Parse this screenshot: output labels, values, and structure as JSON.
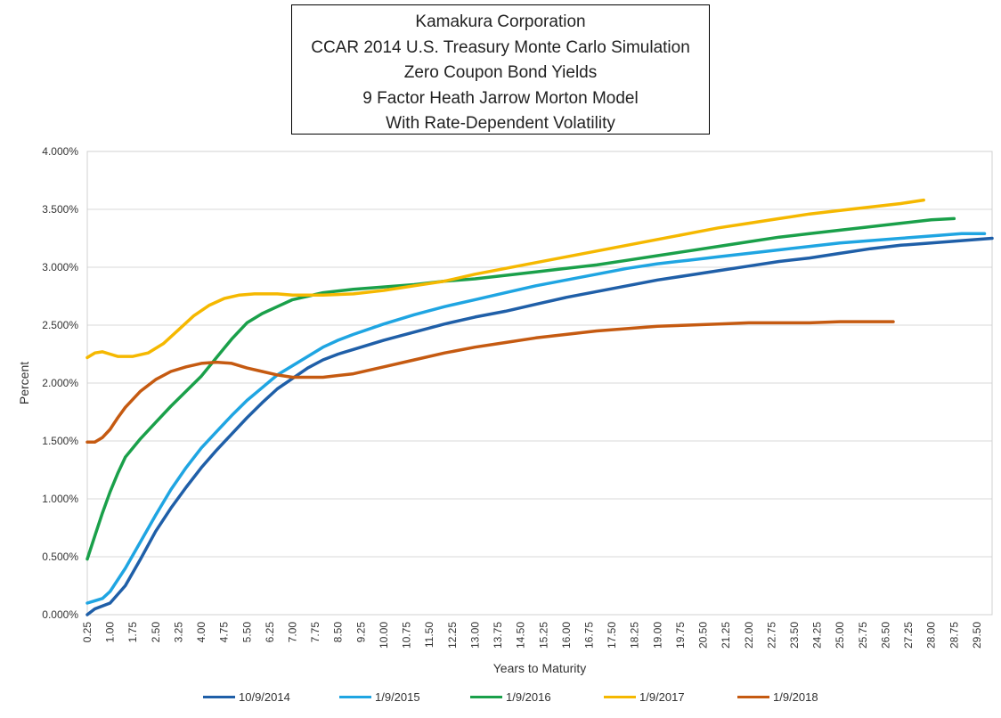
{
  "title_lines": [
    "Kamakura Corporation",
    "CCAR 2014 U.S. Treasury Monte Carlo Simulation",
    "Zero Coupon Bond Yields",
    "9 Factor Heath Jarrow Morton Model",
    "With Rate-Dependent Volatility"
  ],
  "chart_data": {
    "type": "line",
    "title": "Kamakura Corporation / CCAR 2014 U.S. Treasury Monte Carlo Simulation / Zero Coupon Bond Yields / 9 Factor Heath Jarrow Morton Model / With Rate-Dependent Volatility",
    "xlabel": "Years to Maturity",
    "ylabel": "Percent",
    "xlim": [
      0.25,
      30.0
    ],
    "ylim": [
      0,
      4
    ],
    "x_tick_labels": [
      "0.25",
      "1.00",
      "1.75",
      "2.50",
      "3.25",
      "4.00",
      "4.75",
      "5.50",
      "6.25",
      "7.00",
      "7.75",
      "8.50",
      "9.25",
      "10.00",
      "10.75",
      "11.50",
      "12.25",
      "13.00",
      "13.75",
      "14.50",
      "15.25",
      "16.00",
      "16.75",
      "17.50",
      "18.25",
      "19.00",
      "19.75",
      "20.50",
      "21.25",
      "22.00",
      "22.75",
      "23.50",
      "24.25",
      "25.00",
      "25.75",
      "26.50",
      "27.25",
      "28.00",
      "28.75",
      "29.50"
    ],
    "y_tick_labels": [
      "0.000%",
      "0.500%",
      "1.000%",
      "1.500%",
      "2.000%",
      "2.500%",
      "3.000%",
      "3.500%",
      "4.000%"
    ],
    "y_ticks": [
      0,
      0.5,
      1.0,
      1.5,
      2.0,
      2.5,
      3.0,
      3.5,
      4.0
    ],
    "grid": "horizontal",
    "legend_position": "bottom",
    "series": [
      {
        "name": "10/9/2014",
        "color": "#1f5fa8",
        "points": [
          [
            0.25,
            0.0
          ],
          [
            0.5,
            0.05
          ],
          [
            1.0,
            0.1
          ],
          [
            1.5,
            0.25
          ],
          [
            2.0,
            0.48
          ],
          [
            2.5,
            0.72
          ],
          [
            3.0,
            0.92
          ],
          [
            3.5,
            1.1
          ],
          [
            4.0,
            1.27
          ],
          [
            4.5,
            1.42
          ],
          [
            5.0,
            1.56
          ],
          [
            5.5,
            1.7
          ],
          [
            6.0,
            1.83
          ],
          [
            6.5,
            1.95
          ],
          [
            7.0,
            2.04
          ],
          [
            7.5,
            2.13
          ],
          [
            8.0,
            2.2
          ],
          [
            8.5,
            2.25
          ],
          [
            9.0,
            2.29
          ],
          [
            10.0,
            2.37
          ],
          [
            11.0,
            2.44
          ],
          [
            12.0,
            2.51
          ],
          [
            13.0,
            2.57
          ],
          [
            14.0,
            2.62
          ],
          [
            15.0,
            2.68
          ],
          [
            16.0,
            2.74
          ],
          [
            17.0,
            2.79
          ],
          [
            18.0,
            2.84
          ],
          [
            19.0,
            2.89
          ],
          [
            20.0,
            2.93
          ],
          [
            21.0,
            2.97
          ],
          [
            22.0,
            3.01
          ],
          [
            23.0,
            3.05
          ],
          [
            24.0,
            3.08
          ],
          [
            25.0,
            3.12
          ],
          [
            26.0,
            3.16
          ],
          [
            27.0,
            3.19
          ],
          [
            28.0,
            3.21
          ],
          [
            29.0,
            3.23
          ],
          [
            30.0,
            3.25
          ]
        ]
      },
      {
        "name": "1/9/2015",
        "color": "#1fa5e2",
        "points": [
          [
            0.25,
            0.1
          ],
          [
            0.5,
            0.12
          ],
          [
            0.75,
            0.14
          ],
          [
            1.0,
            0.2
          ],
          [
            1.5,
            0.4
          ],
          [
            2.0,
            0.63
          ],
          [
            2.5,
            0.86
          ],
          [
            3.0,
            1.08
          ],
          [
            3.5,
            1.27
          ],
          [
            4.0,
            1.44
          ],
          [
            4.5,
            1.58
          ],
          [
            5.0,
            1.72
          ],
          [
            5.5,
            1.85
          ],
          [
            6.0,
            1.96
          ],
          [
            6.5,
            2.07
          ],
          [
            7.0,
            2.15
          ],
          [
            7.5,
            2.23
          ],
          [
            8.0,
            2.31
          ],
          [
            8.5,
            2.37
          ],
          [
            9.0,
            2.42
          ],
          [
            10.0,
            2.51
          ],
          [
            11.0,
            2.59
          ],
          [
            12.0,
            2.66
          ],
          [
            13.0,
            2.72
          ],
          [
            14.0,
            2.78
          ],
          [
            15.0,
            2.84
          ],
          [
            16.0,
            2.89
          ],
          [
            17.0,
            2.94
          ],
          [
            18.0,
            2.99
          ],
          [
            19.0,
            3.03
          ],
          [
            20.0,
            3.06
          ],
          [
            21.0,
            3.09
          ],
          [
            22.0,
            3.12
          ],
          [
            23.0,
            3.15
          ],
          [
            24.0,
            3.18
          ],
          [
            25.0,
            3.21
          ],
          [
            26.0,
            3.23
          ],
          [
            27.0,
            3.25
          ],
          [
            28.0,
            3.27
          ],
          [
            29.0,
            3.29
          ],
          [
            29.75,
            3.29
          ]
        ]
      },
      {
        "name": "1/9/2016",
        "color": "#1aa04a",
        "points": [
          [
            0.25,
            0.48
          ],
          [
            0.5,
            0.68
          ],
          [
            0.75,
            0.88
          ],
          [
            1.0,
            1.06
          ],
          [
            1.25,
            1.22
          ],
          [
            1.5,
            1.36
          ],
          [
            2.0,
            1.52
          ],
          [
            2.5,
            1.66
          ],
          [
            3.0,
            1.8
          ],
          [
            3.5,
            1.93
          ],
          [
            4.0,
            2.06
          ],
          [
            4.5,
            2.22
          ],
          [
            5.0,
            2.38
          ],
          [
            5.5,
            2.52
          ],
          [
            6.0,
            2.6
          ],
          [
            6.5,
            2.66
          ],
          [
            7.0,
            2.72
          ],
          [
            7.5,
            2.75
          ],
          [
            8.0,
            2.78
          ],
          [
            9.0,
            2.81
          ],
          [
            10.0,
            2.83
          ],
          [
            11.0,
            2.85
          ],
          [
            12.0,
            2.88
          ],
          [
            13.0,
            2.9
          ],
          [
            14.0,
            2.93
          ],
          [
            15.0,
            2.96
          ],
          [
            16.0,
            2.99
          ],
          [
            17.0,
            3.02
          ],
          [
            18.0,
            3.06
          ],
          [
            19.0,
            3.1
          ],
          [
            20.0,
            3.14
          ],
          [
            21.0,
            3.18
          ],
          [
            22.0,
            3.22
          ],
          [
            23.0,
            3.26
          ],
          [
            24.0,
            3.29
          ],
          [
            25.0,
            3.32
          ],
          [
            26.0,
            3.35
          ],
          [
            27.0,
            3.38
          ],
          [
            28.0,
            3.41
          ],
          [
            28.75,
            3.42
          ]
        ]
      },
      {
        "name": "1/9/2017",
        "color": "#f5b800",
        "points": [
          [
            0.25,
            2.22
          ],
          [
            0.5,
            2.26
          ],
          [
            0.75,
            2.27
          ],
          [
            1.0,
            2.25
          ],
          [
            1.25,
            2.23
          ],
          [
            1.75,
            2.23
          ],
          [
            2.25,
            2.26
          ],
          [
            2.75,
            2.34
          ],
          [
            3.25,
            2.46
          ],
          [
            3.75,
            2.58
          ],
          [
            4.25,
            2.67
          ],
          [
            4.75,
            2.73
          ],
          [
            5.25,
            2.76
          ],
          [
            5.75,
            2.77
          ],
          [
            6.5,
            2.77
          ],
          [
            7.0,
            2.76
          ],
          [
            7.5,
            2.76
          ],
          [
            8.0,
            2.76
          ],
          [
            9.0,
            2.77
          ],
          [
            10.0,
            2.8
          ],
          [
            11.0,
            2.84
          ],
          [
            12.0,
            2.88
          ],
          [
            13.0,
            2.94
          ],
          [
            14.0,
            2.99
          ],
          [
            15.0,
            3.04
          ],
          [
            16.0,
            3.09
          ],
          [
            17.0,
            3.14
          ],
          [
            18.0,
            3.19
          ],
          [
            19.0,
            3.24
          ],
          [
            20.0,
            3.29
          ],
          [
            21.0,
            3.34
          ],
          [
            22.0,
            3.38
          ],
          [
            23.0,
            3.42
          ],
          [
            24.0,
            3.46
          ],
          [
            25.0,
            3.49
          ],
          [
            26.0,
            3.52
          ],
          [
            27.0,
            3.55
          ],
          [
            27.75,
            3.58
          ]
        ]
      },
      {
        "name": "1/9/2018",
        "color": "#c55a11",
        "points": [
          [
            0.25,
            1.49
          ],
          [
            0.5,
            1.49
          ],
          [
            0.75,
            1.53
          ],
          [
            1.0,
            1.6
          ],
          [
            1.25,
            1.7
          ],
          [
            1.5,
            1.79
          ],
          [
            2.0,
            1.93
          ],
          [
            2.5,
            2.03
          ],
          [
            3.0,
            2.1
          ],
          [
            3.5,
            2.14
          ],
          [
            4.0,
            2.17
          ],
          [
            4.5,
            2.18
          ],
          [
            5.0,
            2.17
          ],
          [
            5.5,
            2.13
          ],
          [
            6.0,
            2.1
          ],
          [
            6.5,
            2.07
          ],
          [
            7.0,
            2.05
          ],
          [
            7.5,
            2.05
          ],
          [
            8.0,
            2.05
          ],
          [
            9.0,
            2.08
          ],
          [
            10.0,
            2.14
          ],
          [
            11.0,
            2.2
          ],
          [
            12.0,
            2.26
          ],
          [
            13.0,
            2.31
          ],
          [
            14.0,
            2.35
          ],
          [
            15.0,
            2.39
          ],
          [
            16.0,
            2.42
          ],
          [
            17.0,
            2.45
          ],
          [
            18.0,
            2.47
          ],
          [
            19.0,
            2.49
          ],
          [
            20.0,
            2.5
          ],
          [
            21.0,
            2.51
          ],
          [
            22.0,
            2.52
          ],
          [
            23.0,
            2.52
          ],
          [
            24.0,
            2.52
          ],
          [
            25.0,
            2.53
          ],
          [
            26.0,
            2.53
          ],
          [
            26.75,
            2.53
          ]
        ]
      }
    ]
  }
}
